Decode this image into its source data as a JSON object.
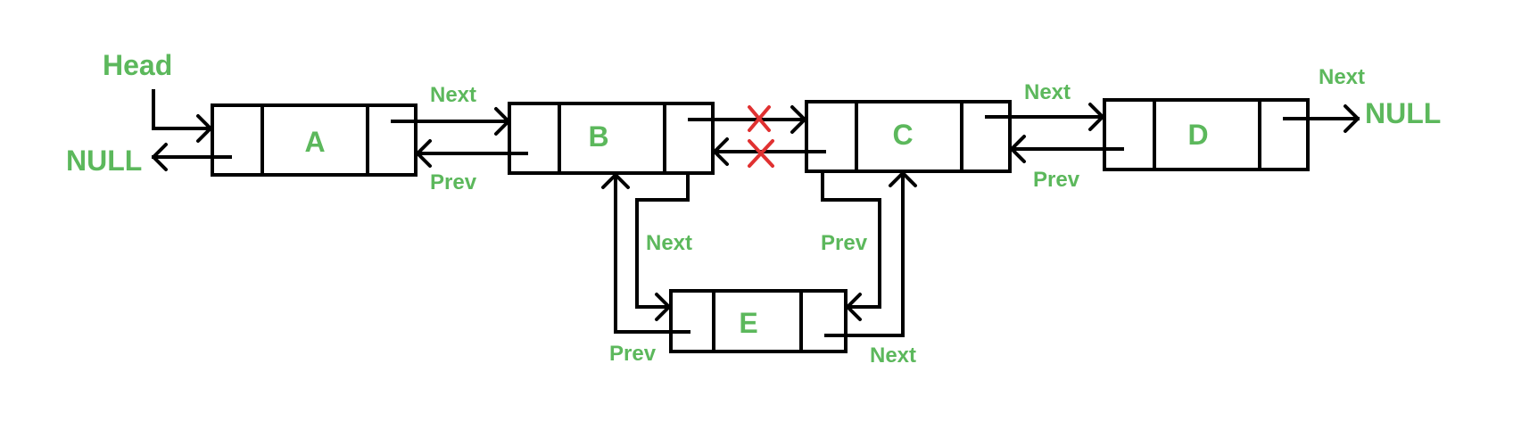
{
  "labels": {
    "head": "Head",
    "null_left": "NULL",
    "null_right": "NULL",
    "next": "Next",
    "prev": "Prev"
  },
  "nodes": {
    "a": "A",
    "b": "B",
    "c": "C",
    "d": "D",
    "e": "E"
  },
  "colors": {
    "text": "#5cb85c",
    "outline": "#000000",
    "removed_link": "#e03131",
    "background": "#ffffff"
  }
}
